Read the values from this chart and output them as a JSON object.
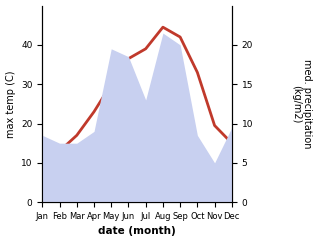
{
  "months": [
    "Jan",
    "Feb",
    "Mar",
    "Apr",
    "May",
    "Jun",
    "Jul",
    "Aug",
    "Sep",
    "Oct",
    "Nov",
    "Dec"
  ],
  "temp": [
    11.5,
    13.0,
    17.0,
    23.0,
    30.0,
    36.5,
    39.0,
    44.5,
    42.0,
    33.0,
    19.5,
    15.0
  ],
  "precip": [
    8.5,
    7.5,
    7.5,
    9.0,
    19.5,
    18.5,
    13.0,
    21.5,
    20.0,
    8.5,
    5.0,
    9.5
  ],
  "temp_color": "#c0392b",
  "precip_fill_color": "#c8d0f0",
  "temp_ylim": [
    0,
    50
  ],
  "precip_ylim": [
    0,
    25
  ],
  "temp_yticks": [
    0,
    10,
    20,
    30,
    40
  ],
  "precip_yticks": [
    0,
    5,
    10,
    15,
    20
  ],
  "ylabel_left": "max temp (C)",
  "ylabel_right": "med. precipitation\n(kg/m2)",
  "xlabel": "date (month)",
  "bg_color": "#ffffff",
  "font_size": 7.5,
  "line_width": 2.0
}
